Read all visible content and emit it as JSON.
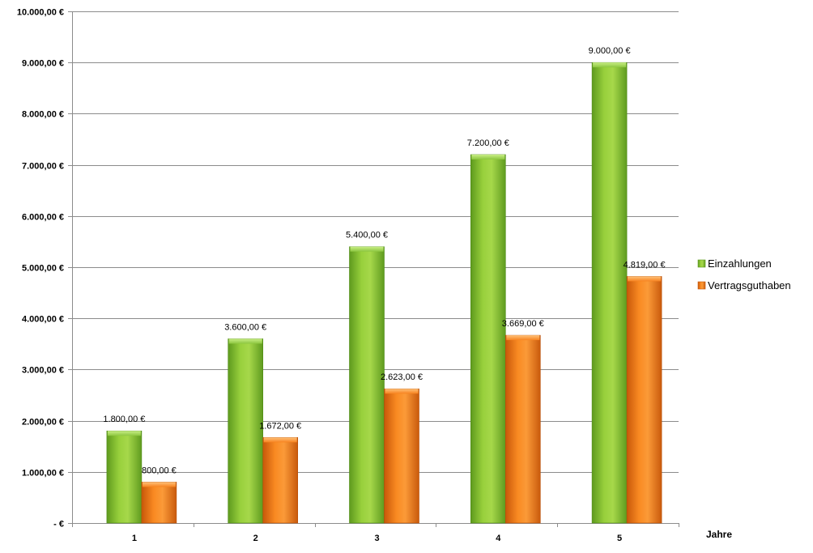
{
  "chart_data": {
    "type": "bar",
    "categories": [
      "1",
      "2",
      "3",
      "4",
      "5"
    ],
    "series": [
      {
        "name": "Einzahlungen",
        "values": [
          1800,
          3600,
          5400,
          7200,
          9000
        ],
        "labels": [
          "1.800,00 €",
          "3.600,00 €",
          "5.400,00 €",
          "7.200,00 €",
          "9.000,00 €"
        ],
        "color": "#8CC63F"
      },
      {
        "name": "Vertragsguthaben",
        "values": [
          800,
          1672,
          2623,
          3669,
          4819
        ],
        "labels": [
          "800,00 €",
          "1.672,00 €",
          "2.623,00 €",
          "3.669,00 €",
          "4.819,00 €"
        ],
        "color": "#F7821E"
      }
    ],
    "y_ticks": [
      {
        "value": 0,
        "label": "-   €"
      },
      {
        "value": 1000,
        "label": "1.000,00 €"
      },
      {
        "value": 2000,
        "label": "2.000,00 €"
      },
      {
        "value": 3000,
        "label": "3.000,00 €"
      },
      {
        "value": 4000,
        "label": "4.000,00 €"
      },
      {
        "value": 5000,
        "label": "5.000,00 €"
      },
      {
        "value": 6000,
        "label": "6.000,00 €"
      },
      {
        "value": 7000,
        "label": "7.000,00 €"
      },
      {
        "value": 8000,
        "label": "8.000,00 €"
      },
      {
        "value": 9000,
        "label": "9.000,00 €"
      },
      {
        "value": 10000,
        "label": "10.000,00 €"
      }
    ],
    "ylim": [
      0,
      10000
    ],
    "xlabel": "Jahre",
    "ylabel": "",
    "grid": true,
    "legend": "right"
  }
}
